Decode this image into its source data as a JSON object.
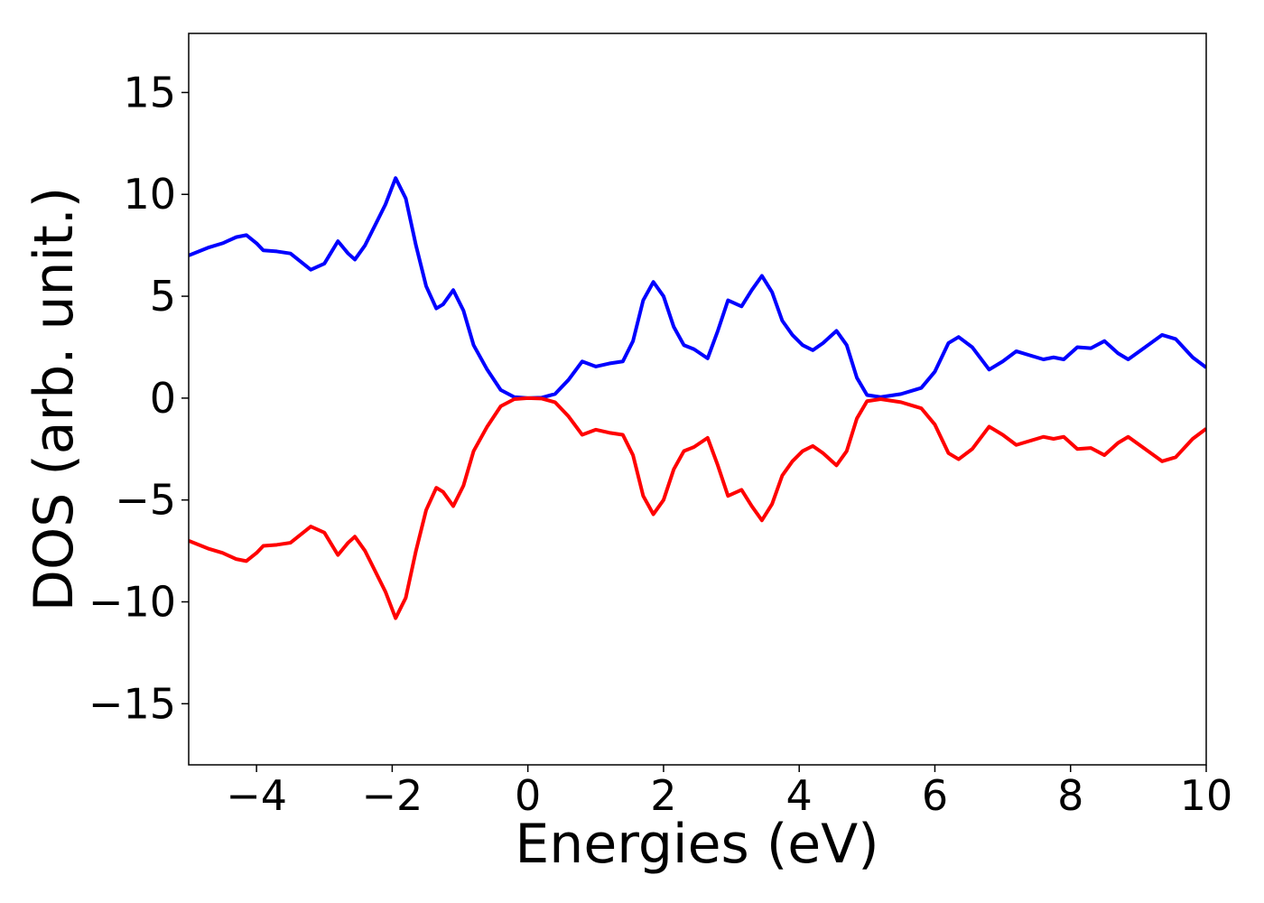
{
  "chart_data": {
    "type": "line",
    "xlabel": "Energies (eV)",
    "ylabel": "DOS (arb. unit.)",
    "x": [
      -5,
      -4.7,
      -4.5,
      -4.3,
      -4.15,
      -4.0,
      -3.9,
      -3.7,
      -3.5,
      -3.35,
      -3.2,
      -3.0,
      -2.8,
      -2.65,
      -2.55,
      -2.4,
      -2.25,
      -2.1,
      -1.95,
      -1.8,
      -1.65,
      -1.5,
      -1.35,
      -1.25,
      -1.1,
      -0.95,
      -0.8,
      -0.6,
      -0.4,
      -0.2,
      0,
      0.2,
      0.4,
      0.6,
      0.8,
      1.0,
      1.2,
      1.4,
      1.55,
      1.7,
      1.85,
      2.0,
      2.15,
      2.3,
      2.45,
      2.65,
      2.8,
      2.95,
      3.15,
      3.3,
      3.45,
      3.6,
      3.75,
      3.9,
      4.05,
      4.2,
      4.35,
      4.55,
      4.7,
      4.85,
      5.0,
      5.2,
      5.5,
      5.8,
      6.0,
      6.2,
      6.35,
      6.55,
      6.8,
      7.0,
      7.2,
      7.4,
      7.6,
      7.75,
      7.9,
      8.1,
      8.3,
      8.5,
      8.7,
      8.85,
      9.1,
      9.35,
      9.55,
      9.8,
      10
    ],
    "series": [
      {
        "color": "#0000ff",
        "values": [
          7.0,
          7.4,
          7.6,
          7.9,
          8.0,
          7.6,
          7.25,
          7.2,
          7.1,
          6.7,
          6.3,
          6.6,
          7.7,
          7.1,
          6.8,
          7.5,
          8.5,
          9.5,
          10.8,
          9.8,
          7.5,
          5.5,
          4.4,
          4.6,
          5.3,
          4.3,
          2.6,
          1.4,
          0.4,
          0.05,
          0,
          0.02,
          0.2,
          0.9,
          1.8,
          1.55,
          1.7,
          1.8,
          2.8,
          4.8,
          5.7,
          5.0,
          3.5,
          2.6,
          2.4,
          1.95,
          3.3,
          4.8,
          4.5,
          5.3,
          6.0,
          5.2,
          3.8,
          3.1,
          2.6,
          2.35,
          2.7,
          3.3,
          2.6,
          1.0,
          0.15,
          0.05,
          0.2,
          0.5,
          1.3,
          2.7,
          3.0,
          2.5,
          1.4,
          1.8,
          2.3,
          2.1,
          1.9,
          2.0,
          1.9,
          2.5,
          2.45,
          2.8,
          2.2,
          1.9,
          2.5,
          3.1,
          2.9,
          2.0,
          1.5
        ]
      },
      {
        "color": "#ff0000",
        "values": [
          -7.0,
          -7.4,
          -7.6,
          -7.9,
          -8.0,
          -7.6,
          -7.25,
          -7.2,
          -7.1,
          -6.7,
          -6.3,
          -6.6,
          -7.7,
          -7.1,
          -6.8,
          -7.5,
          -8.5,
          -9.5,
          -10.8,
          -9.8,
          -7.5,
          -5.5,
          -4.4,
          -4.6,
          -5.3,
          -4.3,
          -2.6,
          -1.4,
          -0.4,
          -0.05,
          0,
          -0.02,
          -0.2,
          -0.9,
          -1.8,
          -1.55,
          -1.7,
          -1.8,
          -2.8,
          -4.8,
          -5.7,
          -5.0,
          -3.5,
          -2.6,
          -2.4,
          -1.95,
          -3.3,
          -4.8,
          -4.5,
          -5.3,
          -6.0,
          -5.2,
          -3.8,
          -3.1,
          -2.6,
          -2.35,
          -2.7,
          -3.3,
          -2.6,
          -1.0,
          -0.15,
          -0.05,
          -0.2,
          -0.5,
          -1.3,
          -2.7,
          -3.0,
          -2.5,
          -1.4,
          -1.8,
          -2.3,
          -2.1,
          -1.9,
          -2.0,
          -1.9,
          -2.5,
          -2.45,
          -2.8,
          -2.2,
          -1.9,
          -2.5,
          -3.1,
          -2.9,
          -2.0,
          -1.5
        ]
      }
    ],
    "xlim": [
      -5,
      10
    ],
    "xticks": [
      {
        "value": -4,
        "label": "−4"
      },
      {
        "value": -2,
        "label": "−2"
      },
      0,
      2,
      4,
      6,
      8,
      10
    ],
    "ylim": [
      -18,
      17.9
    ],
    "yticks": [
      {
        "value": -15,
        "label": "−15"
      },
      {
        "value": -10,
        "label": "−10"
      },
      {
        "value": -5,
        "label": "−5"
      },
      0,
      5,
      10,
      15
    ],
    "grid": false
  }
}
